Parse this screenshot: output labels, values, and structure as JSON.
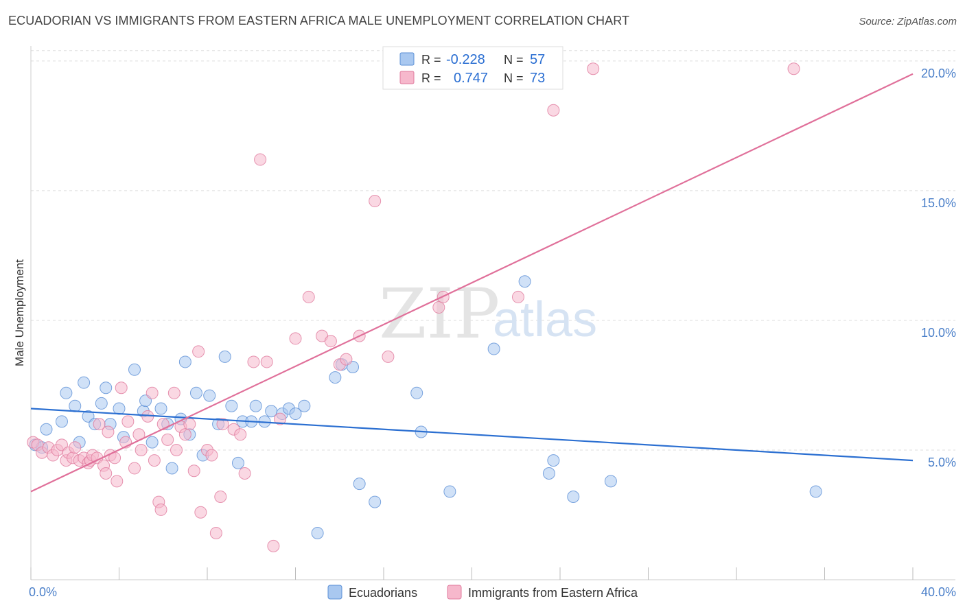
{
  "header": {
    "title": "ECUADORIAN VS IMMIGRANTS FROM EASTERN AFRICA MALE UNEMPLOYMENT CORRELATION CHART",
    "source": "Source: ZipAtlas.com"
  },
  "watermark": {
    "zip": "ZIP",
    "atlas": "atlas"
  },
  "legend_top": [
    {
      "r_label": "R =",
      "r_value": "-0.228",
      "n_label": "N =",
      "n_value": "57",
      "color": "#a9c8f0",
      "stroke": "#5b8fd6"
    },
    {
      "r_label": "R =",
      "r_value": "0.747",
      "n_label": "N =",
      "n_value": "73",
      "color": "#f6b8cc",
      "stroke": "#e07a9d"
    }
  ],
  "legend_bottom": [
    {
      "label": "Ecuadorians",
      "color": "#a9c8f0",
      "stroke": "#5b8fd6"
    },
    {
      "label": "Immigrants from Eastern Africa",
      "color": "#f6b8cc",
      "stroke": "#e07a9d"
    }
  ],
  "chart_data": {
    "type": "scatter",
    "title": "ECUADORIAN VS IMMIGRANTS FROM EASTERN AFRICA MALE UNEMPLOYMENT CORRELATION CHART",
    "xlabel": "",
    "ylabel": "Male Unemployment",
    "xlim": [
      0,
      40
    ],
    "ylim": [
      0,
      20.5
    ],
    "x_tick_labels": [
      "0.0%",
      "40.0%"
    ],
    "y_ticks": [
      5,
      10,
      15,
      20
    ],
    "y_tick_labels": [
      "5.0%",
      "10.0%",
      "15.0%",
      "20.0%"
    ],
    "grid": true,
    "legend_position": "top-center",
    "series": [
      {
        "name": "Ecuadorians",
        "color": "#5b8fd6",
        "fill": "#a9c8f0",
        "trend": {
          "x": [
            0,
            40
          ],
          "y": [
            6.6,
            4.6
          ]
        },
        "points": [
          [
            0.2,
            5.2
          ],
          [
            0.5,
            5.1
          ],
          [
            0.7,
            5.8
          ],
          [
            1.4,
            6.1
          ],
          [
            1.6,
            7.2
          ],
          [
            2.0,
            6.7
          ],
          [
            2.2,
            5.3
          ],
          [
            2.4,
            7.6
          ],
          [
            2.6,
            6.3
          ],
          [
            2.9,
            6.0
          ],
          [
            3.2,
            6.8
          ],
          [
            3.4,
            7.4
          ],
          [
            3.6,
            6.0
          ],
          [
            4.0,
            6.6
          ],
          [
            4.2,
            5.5
          ],
          [
            4.7,
            8.1
          ],
          [
            5.1,
            6.5
          ],
          [
            5.2,
            6.9
          ],
          [
            5.5,
            5.3
          ],
          [
            5.9,
            6.6
          ],
          [
            6.2,
            6.0
          ],
          [
            6.4,
            4.3
          ],
          [
            6.8,
            6.2
          ],
          [
            7.0,
            8.4
          ],
          [
            7.2,
            5.6
          ],
          [
            7.5,
            7.2
          ],
          [
            7.8,
            4.8
          ],
          [
            8.1,
            7.1
          ],
          [
            8.5,
            6.0
          ],
          [
            8.8,
            8.6
          ],
          [
            9.1,
            6.7
          ],
          [
            9.4,
            4.5
          ],
          [
            9.6,
            6.1
          ],
          [
            10.0,
            6.1
          ],
          [
            10.2,
            6.7
          ],
          [
            10.6,
            6.1
          ],
          [
            10.9,
            6.5
          ],
          [
            11.4,
            6.4
          ],
          [
            11.7,
            6.6
          ],
          [
            12.0,
            6.4
          ],
          [
            12.4,
            6.7
          ],
          [
            13.0,
            1.8
          ],
          [
            13.8,
            7.8
          ],
          [
            14.1,
            8.3
          ],
          [
            14.6,
            8.2
          ],
          [
            14.9,
            3.7
          ],
          [
            15.6,
            3.0
          ],
          [
            17.5,
            7.2
          ],
          [
            17.7,
            5.7
          ],
          [
            19.0,
            3.4
          ],
          [
            21.0,
            8.9
          ],
          [
            22.4,
            11.5
          ],
          [
            23.5,
            4.1
          ],
          [
            23.7,
            4.6
          ],
          [
            24.6,
            3.2
          ],
          [
            26.3,
            3.8
          ],
          [
            35.6,
            3.4
          ]
        ]
      },
      {
        "name": "Immigrants from Eastern Africa",
        "color": "#e07a9d",
        "fill": "#f6b8cc",
        "trend": {
          "x": [
            0,
            40
          ],
          "y": [
            3.4,
            19.5
          ]
        },
        "points": [
          [
            0.1,
            5.3
          ],
          [
            0.3,
            5.2
          ],
          [
            0.5,
            4.9
          ],
          [
            0.8,
            5.1
          ],
          [
            1.0,
            4.8
          ],
          [
            1.2,
            5.0
          ],
          [
            1.4,
            5.2
          ],
          [
            1.6,
            4.6
          ],
          [
            1.7,
            4.9
          ],
          [
            1.9,
            4.7
          ],
          [
            2.0,
            5.1
          ],
          [
            2.2,
            4.6
          ],
          [
            2.4,
            4.7
          ],
          [
            2.6,
            4.5
          ],
          [
            2.7,
            4.6
          ],
          [
            2.8,
            4.8
          ],
          [
            3.0,
            4.7
          ],
          [
            3.1,
            6.0
          ],
          [
            3.3,
            4.4
          ],
          [
            3.4,
            4.1
          ],
          [
            3.5,
            5.7
          ],
          [
            3.6,
            4.8
          ],
          [
            3.8,
            4.7
          ],
          [
            3.9,
            3.8
          ],
          [
            4.1,
            7.4
          ],
          [
            4.3,
            5.3
          ],
          [
            4.4,
            6.1
          ],
          [
            4.7,
            4.3
          ],
          [
            4.9,
            5.6
          ],
          [
            5.0,
            5.0
          ],
          [
            5.3,
            6.3
          ],
          [
            5.5,
            7.2
          ],
          [
            5.6,
            4.6
          ],
          [
            5.8,
            3.0
          ],
          [
            5.9,
            2.7
          ],
          [
            6.0,
            6.0
          ],
          [
            6.2,
            5.4
          ],
          [
            6.5,
            7.2
          ],
          [
            6.6,
            5.0
          ],
          [
            6.8,
            5.9
          ],
          [
            7.0,
            5.6
          ],
          [
            7.2,
            6.0
          ],
          [
            7.4,
            4.2
          ],
          [
            7.6,
            8.8
          ],
          [
            7.7,
            2.6
          ],
          [
            8.0,
            5.0
          ],
          [
            8.2,
            4.8
          ],
          [
            8.4,
            1.8
          ],
          [
            8.6,
            3.2
          ],
          [
            8.7,
            6.0
          ],
          [
            9.2,
            5.8
          ],
          [
            9.5,
            5.6
          ],
          [
            9.7,
            4.1
          ],
          [
            10.1,
            8.4
          ],
          [
            10.4,
            16.2
          ],
          [
            10.7,
            8.4
          ],
          [
            11.0,
            1.3
          ],
          [
            11.3,
            6.2
          ],
          [
            12.0,
            9.3
          ],
          [
            12.6,
            10.9
          ],
          [
            13.2,
            9.4
          ],
          [
            13.6,
            9.2
          ],
          [
            14.0,
            8.3
          ],
          [
            14.3,
            8.5
          ],
          [
            14.9,
            9.4
          ],
          [
            15.6,
            14.6
          ],
          [
            16.2,
            8.6
          ],
          [
            18.5,
            10.5
          ],
          [
            18.7,
            10.9
          ],
          [
            22.1,
            10.9
          ],
          [
            23.7,
            18.1
          ],
          [
            25.5,
            19.7
          ],
          [
            34.6,
            19.7
          ]
        ]
      }
    ]
  }
}
